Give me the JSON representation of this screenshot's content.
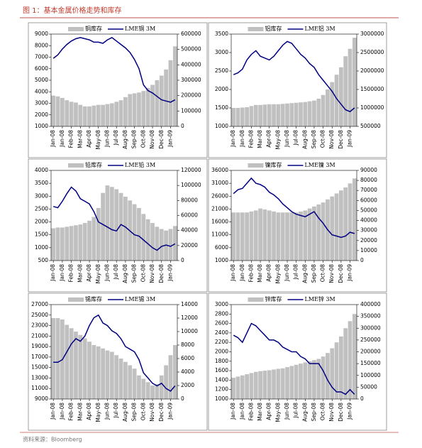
{
  "title": "图 1：基本金属价格走势和库存",
  "source": "资料来源：Bloomberg",
  "chart_data": [
    {
      "type": "combo",
      "categories": [
        "Jan-08",
        null,
        "Jan-08",
        null,
        "Feb-08",
        null,
        "Mar-08",
        null,
        "Apr-08",
        null,
        "May-08",
        null,
        "Jun-08",
        null,
        "Jul-08",
        null,
        "Aug-08",
        null,
        "Sep-08",
        null,
        "Oct-08",
        null,
        "Nov-08",
        null,
        "Dec-08",
        null,
        "Jan-09",
        null
      ],
      "ylim": [
        1000,
        9000
      ],
      "yticks": [
        1000,
        2000,
        3000,
        4000,
        5000,
        6000,
        7000,
        8000,
        9000
      ],
      "y2lim": [
        0,
        600000
      ],
      "y2ticks": [
        0,
        100000,
        200000,
        300000,
        400000,
        500000,
        600000
      ],
      "series": [
        {
          "name": "铜库存",
          "type": "bar",
          "axis": "y2",
          "color": "#c0c0c0",
          "values": [
            200000,
            195000,
            185000,
            170000,
            160000,
            155000,
            140000,
            130000,
            130000,
            135000,
            140000,
            140000,
            145000,
            150000,
            160000,
            170000,
            190000,
            210000,
            215000,
            220000,
            230000,
            250000,
            270000,
            300000,
            330000,
            370000,
            430000,
            520000
          ]
        },
        {
          "name": "LME铜 3M",
          "type": "line",
          "color": "#000080",
          "values": [
            6900,
            7200,
            7700,
            8100,
            8400,
            8600,
            8700,
            8600,
            8500,
            8300,
            8300,
            8200,
            8500,
            8700,
            8400,
            8100,
            7800,
            7400,
            6800,
            6000,
            4600,
            4100,
            3900,
            3600,
            3300,
            3200,
            3100,
            3300
          ]
        }
      ]
    },
    {
      "type": "combo",
      "categories": [
        "Jan-08",
        null,
        "Jan-08",
        null,
        "Feb-08",
        null,
        "Mar-08",
        null,
        "Apr-08",
        null,
        "May-08",
        null,
        "Jun-08",
        null,
        "Jul-08",
        null,
        "Aug-08",
        null,
        "Sep-08",
        null,
        "Oct-08",
        null,
        "Nov-08",
        null,
        "Dec-08",
        null,
        "Jan-09",
        null
      ],
      "ylim": [
        1000,
        3500
      ],
      "yticks": [
        1000,
        1500,
        2000,
        2500,
        3000,
        3500
      ],
      "y2lim": [
        500000,
        3000000
      ],
      "y2ticks": [
        500000,
        1000000,
        1500000,
        2000000,
        2500000,
        3000000
      ],
      "series": [
        {
          "name": "铝库存",
          "type": "bar",
          "axis": "y2",
          "color": "#c0c0c0",
          "values": [
            1000000,
            1000000,
            1010000,
            1020000,
            1050000,
            1080000,
            1080000,
            1090000,
            1100000,
            1100000,
            1100000,
            1110000,
            1120000,
            1130000,
            1140000,
            1150000,
            1160000,
            1180000,
            1200000,
            1250000,
            1350000,
            1500000,
            1700000,
            1900000,
            2100000,
            2400000,
            2600000,
            2900000
          ]
        },
        {
          "name": "LME铝 3M",
          "type": "line",
          "color": "#000080",
          "values": [
            2400,
            2450,
            2550,
            2800,
            2950,
            3050,
            2900,
            2850,
            2800,
            2900,
            3050,
            3200,
            3300,
            3250,
            3100,
            2950,
            2850,
            2700,
            2600,
            2400,
            2250,
            2100,
            1950,
            1750,
            1600,
            1450,
            1400,
            1500
          ]
        }
      ]
    },
    {
      "type": "combo",
      "categories": [
        "Jan-08",
        null,
        "Jan-08",
        null,
        "Feb-08",
        null,
        "Mar-08",
        null,
        "Apr-08",
        null,
        "May-08",
        null,
        "Jun-08",
        null,
        "Jul-08",
        null,
        "Aug-08",
        null,
        "Sep-08",
        null,
        "Oct-08",
        null,
        "Nov-08",
        null,
        "Dec-08",
        null,
        "Jan-09",
        null
      ],
      "ylim": [
        500,
        4000
      ],
      "yticks": [
        500,
        1000,
        1500,
        2000,
        2500,
        3000,
        3500,
        4000
      ],
      "y2lim": [
        0,
        120000
      ],
      "y2ticks": [
        0,
        20000,
        40000,
        60000,
        80000,
        100000,
        120000
      ],
      "series": [
        {
          "name": "铅库存",
          "type": "bar",
          "axis": "y2",
          "color": "#c0c0c0",
          "values": [
            43000,
            44000,
            44000,
            45000,
            46000,
            47000,
            48000,
            50000,
            53000,
            58000,
            70000,
            90000,
            100000,
            98000,
            95000,
            90000,
            85000,
            80000,
            75000,
            70000,
            62000,
            55000,
            50000,
            45000,
            42000,
            40000,
            42000,
            46000
          ]
        },
        {
          "name": "LME铅 3M",
          "type": "line",
          "color": "#000080",
          "values": [
            2600,
            2550,
            2800,
            3100,
            3350,
            3200,
            2900,
            2800,
            2700,
            2400,
            2000,
            1900,
            1800,
            1700,
            1650,
            1900,
            1800,
            1650,
            1500,
            1450,
            1300,
            1150,
            1000,
            900,
            1050,
            1100,
            1050,
            1150
          ]
        }
      ]
    },
    {
      "type": "combo",
      "categories": [
        "Jan-08",
        null,
        "Jan-08",
        null,
        "Feb-08",
        null,
        "Mar-08",
        null,
        "Apr-08",
        null,
        "May-08",
        null,
        "Jun-08",
        null,
        "Jul-08",
        null,
        "Aug-08",
        null,
        "Sep-08",
        null,
        "Oct-08",
        null,
        "Nov-08",
        null,
        "Dec-08",
        null,
        "Jan-09",
        null
      ],
      "ylim": [
        1000,
        36000
      ],
      "yticks": [
        1000,
        6000,
        11000,
        16000,
        21000,
        26000,
        31000,
        36000
      ],
      "y2lim": [
        0,
        90000
      ],
      "y2ticks": [
        0,
        10000,
        20000,
        30000,
        40000,
        50000,
        60000,
        70000,
        80000,
        90000
      ],
      "series": [
        {
          "name": "镍库存",
          "type": "bar",
          "axis": "y2",
          "color": "#c0c0c0",
          "values": [
            48000,
            48000,
            48000,
            48000,
            49000,
            50000,
            52000,
            51000,
            50000,
            49000,
            48000,
            48000,
            48000,
            48000,
            48000,
            49000,
            50000,
            52000,
            54000,
            56000,
            58000,
            61000,
            64000,
            67000,
            70000,
            73000,
            77000,
            82000
          ]
        },
        {
          "name": "LME镍 3M",
          "type": "line",
          "color": "#000080",
          "values": [
            27000,
            28500,
            29000,
            31000,
            33000,
            31000,
            30500,
            29500,
            27500,
            26500,
            25000,
            23000,
            21500,
            20000,
            19000,
            18500,
            18000,
            19000,
            20000,
            17500,
            15500,
            13000,
            11000,
            10500,
            10000,
            10500,
            12000,
            11500
          ]
        }
      ]
    },
    {
      "type": "combo",
      "categories": [
        "Jan-08",
        null,
        "Jan-08",
        null,
        "Feb-08",
        null,
        "Mar-08",
        null,
        "Apr-08",
        null,
        "May-08",
        null,
        "Jun-08",
        null,
        "Jul-08",
        null,
        "Aug-08",
        null,
        "Sep-08",
        null,
        "Oct-08",
        null,
        "Nov-08",
        null,
        "Dec-08",
        null,
        "Jan-09",
        null
      ],
      "ylim": [
        9000,
        27000
      ],
      "yticks": [
        9000,
        11000,
        13000,
        15000,
        17000,
        19000,
        21000,
        23000,
        25000,
        27000
      ],
      "y2lim": [
        0,
        14000
      ],
      "y2ticks": [
        0,
        2000,
        4000,
        6000,
        8000,
        10000,
        12000,
        14000
      ],
      "series": [
        {
          "name": "锡库存",
          "type": "bar",
          "axis": "y2",
          "color": "#c0c0c0",
          "values": [
            12000,
            12000,
            11800,
            11000,
            10500,
            10000,
            9500,
            9000,
            8500,
            8000,
            7800,
            7500,
            7200,
            7000,
            6500,
            6000,
            5500,
            5000,
            4500,
            3500,
            3000,
            2500,
            2000,
            2200,
            3500,
            5000,
            6500,
            8000
          ]
        },
        {
          "name": "LME锡 3M",
          "type": "line",
          "color": "#000080",
          "values": [
            16000,
            16000,
            16500,
            18000,
            19500,
            20500,
            20000,
            21000,
            23000,
            24500,
            25000,
            23500,
            23000,
            22000,
            21500,
            20500,
            19000,
            18500,
            18000,
            16500,
            14000,
            13000,
            12000,
            11500,
            12000,
            11000,
            10500,
            11500
          ]
        }
      ]
    },
    {
      "type": "combo",
      "categories": [
        "Jan-08",
        null,
        "Jan-08",
        null,
        "Feb-08",
        null,
        "Mar-08",
        null,
        "Apr-08",
        null,
        "May-08",
        null,
        "Jun-08",
        null,
        "Jul-08",
        null,
        "Aug-08",
        null,
        "Sep-08",
        null,
        "Oct-08",
        null,
        "Nov-08",
        null,
        "Dec-08",
        null,
        "Jan-09",
        null
      ],
      "ylim": [
        1000,
        3000
      ],
      "yticks": [
        1000,
        1200,
        1400,
        1600,
        1800,
        2000,
        2200,
        2400,
        2600,
        2800,
        3000
      ],
      "y2lim": [
        0,
        400000
      ],
      "y2ticks": [
        0,
        50000,
        100000,
        150000,
        200000,
        250000,
        300000,
        350000,
        400000
      ],
      "series": [
        {
          "name": "锌库存",
          "type": "bar",
          "axis": "y2",
          "color": "#c0c0c0",
          "values": [
            90000,
            95000,
            100000,
            105000,
            110000,
            115000,
            118000,
            120000,
            122000,
            125000,
            128000,
            130000,
            135000,
            140000,
            145000,
            150000,
            155000,
            160000,
            165000,
            170000,
            180000,
            195000,
            215000,
            240000,
            265000,
            300000,
            330000,
            360000
          ]
        },
        {
          "name": "LME锌 3M",
          "type": "line",
          "color": "#000080",
          "values": [
            2350,
            2300,
            2200,
            2400,
            2600,
            2550,
            2450,
            2350,
            2250,
            2250,
            2200,
            2100,
            2050,
            2000,
            2000,
            1900,
            1850,
            1750,
            1750,
            1750,
            1600,
            1400,
            1250,
            1150,
            1150,
            1100,
            1200,
            1100
          ]
        }
      ]
    }
  ]
}
